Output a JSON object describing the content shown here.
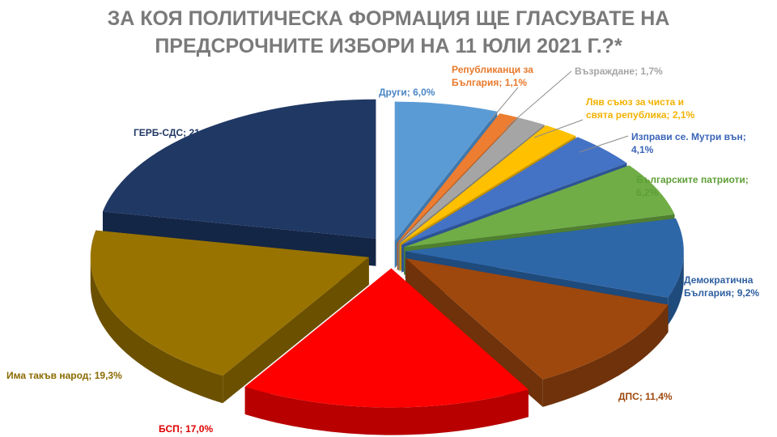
{
  "title_lines": [
    "ЗА КОЯ ПОЛИТИЧЕСКА ФОРМАЦИЯ ЩЕ ГЛАСУВАТЕ НА",
    "ПРЕДСРОЧНИТЕ ИЗБОРИ НА 11 ЮЛИ 2021 Г.?*"
  ],
  "chart_data": {
    "type": "pie",
    "title": "ЗА КОЯ ПОЛИТИЧЕСКА ФОРМАЦИЯ ЩЕ ГЛАСУВАТЕ НА ПРЕДСРОЧНИТЕ ИЗБОРИ НА 11 ЮЛИ 2021 Г.?*",
    "style": "3d-exploded",
    "slices": [
      {
        "name": "Други",
        "value": 6.0,
        "label_lines": [
          "Други; 6,0%"
        ],
        "color": "#5b9bd5",
        "side": "#3f78ad",
        "label_color": "#4a86c5"
      },
      {
        "name": "Републиканци за България",
        "value": 1.1,
        "label_lines": [
          "Републиканци  за",
          "България;  1,1%"
        ],
        "color": "#ed7d31",
        "side": "#b85e22",
        "label_color": "#e8792c"
      },
      {
        "name": "Възраждане",
        "value": 1.7,
        "label_lines": [
          "Възраждане;  1,7%"
        ],
        "color": "#a5a5a5",
        "side": "#7b7b7b",
        "label_color": "#a5a5a5"
      },
      {
        "name": "Ляв съюз за чиста и свята република",
        "value": 2.1,
        "label_lines": [
          "Ляв  съюз  за  чиста  и",
          "свята  република;  2,1%"
        ],
        "color": "#ffc000",
        "side": "#c49300",
        "label_color": "#f2b200"
      },
      {
        "name": "Изправи се. Мутри вън",
        "value": 4.1,
        "label_lines": [
          "Изправи  се.  Мутри  вън;",
          "4,1%"
        ],
        "color": "#4472c4",
        "side": "#2e5496",
        "label_color": "#3a64b8"
      },
      {
        "name": "Българските патриоти",
        "value": 6.2,
        "label_lines": [
          "Българските  патриоти;",
          "6,2%"
        ],
        "color": "#70ad47",
        "side": "#4f7f30",
        "label_color": "#5e9e36"
      },
      {
        "name": "Демократична България",
        "value": 9.2,
        "label_lines": [
          "Демократична",
          "България;  9,2%"
        ],
        "color": "#2e67a8",
        "side": "#1f4a7c",
        "label_color": "#2f5fa0"
      },
      {
        "name": "ДПС",
        "value": 11.4,
        "label_lines": [
          "ДПС;  11,4%"
        ],
        "color": "#9e480e",
        "side": "#6f320a",
        "label_color": "#9e480e"
      },
      {
        "name": "БСП",
        "value": 17.0,
        "label_lines": [
          "БСП;  17,0%"
        ],
        "color": "#ff0000",
        "side": "#b80000",
        "label_color": "#e00000"
      },
      {
        "name": "Има такъв народ",
        "value": 19.3,
        "label_lines": [
          "Има  такъв  народ;  19,3%"
        ],
        "color": "#997300",
        "side": "#6b5000",
        "label_color": "#8a6a00"
      },
      {
        "name": "ГЕРБ-СДС",
        "value": 21.9,
        "label_lines": [
          "ГЕРБ-СДС;  21,9%"
        ],
        "color": "#203864",
        "side": "#142646",
        "label_color": "#203864"
      }
    ]
  }
}
